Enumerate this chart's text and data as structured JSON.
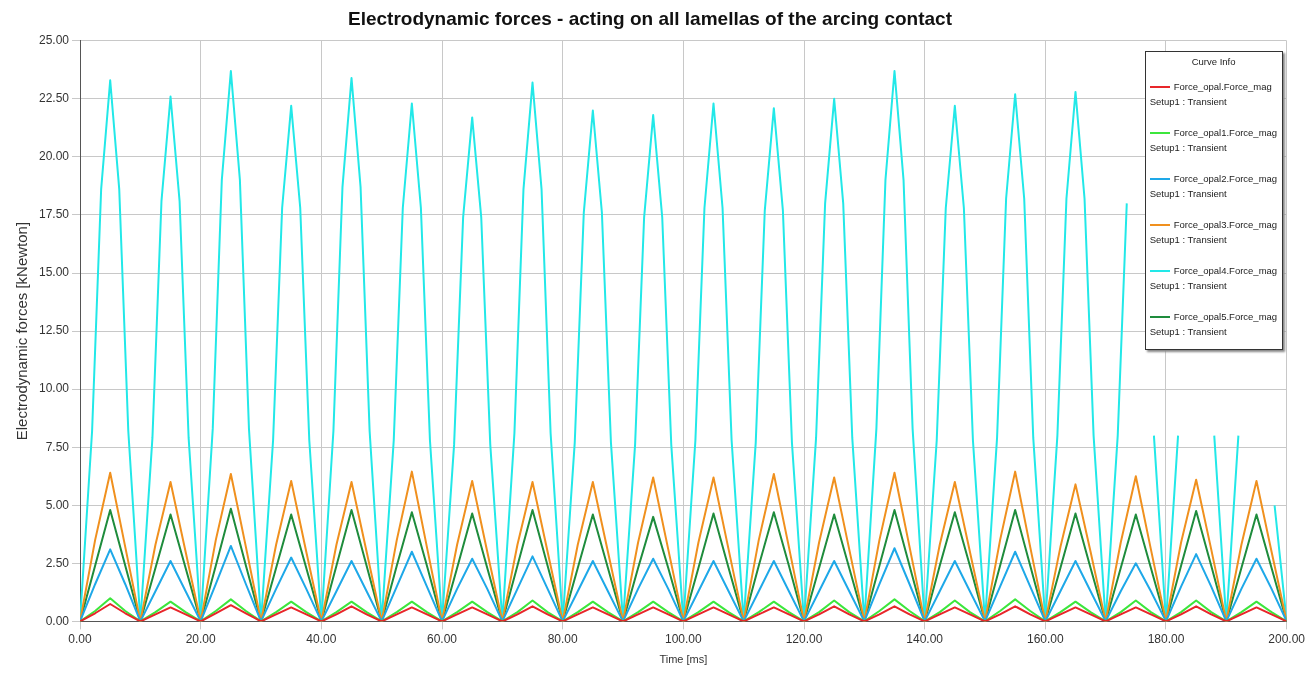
{
  "chart_data": {
    "type": "line",
    "title": "Electrodynamic forces - acting on all lamellas of the arcing contact",
    "xlabel": "Time [ms]",
    "ylabel": "Electrodynamic forces [kNewton]",
    "legend_title": "Curve Info",
    "legend": "top right",
    "grid": true,
    "xlim": [
      0,
      200
    ],
    "xticks": [
      {
        "value": 0,
        "label": "0.00"
      },
      {
        "value": 20,
        "label": "20.00"
      },
      {
        "value": 40,
        "label": "40.00"
      },
      {
        "value": 60,
        "label": "60.00"
      },
      {
        "value": 80,
        "label": "80.00"
      },
      {
        "value": 100,
        "label": "100.00"
      },
      {
        "value": 120,
        "label": "120.00"
      },
      {
        "value": 140,
        "label": "140.00"
      },
      {
        "value": 160,
        "label": "160.00"
      },
      {
        "value": 180,
        "label": "180.00"
      },
      {
        "value": 200,
        "label": "200.00"
      }
    ],
    "ylim": [
      0,
      25
    ],
    "yticks": [
      {
        "value": 0,
        "label": "0.00"
      },
      {
        "value": 2.5,
        "label": "2.50"
      },
      {
        "value": 5,
        "label": "5.00"
      },
      {
        "value": 7.5,
        "label": "7.50"
      },
      {
        "value": 10,
        "label": "10.00"
      },
      {
        "value": 12.5,
        "label": "12.50"
      },
      {
        "value": 15,
        "label": "15.00"
      },
      {
        "value": 17.5,
        "label": "17.50"
      },
      {
        "value": 20,
        "label": "20.00"
      },
      {
        "value": 22.5,
        "label": "22.50"
      },
      {
        "value": 25,
        "label": "25.00"
      }
    ],
    "series": [
      {
        "name": "Force_opal.Force_mag Setup1 : Transient",
        "color": "#e8262a",
        "x": [
          0,
          2.5,
          5,
          7.5,
          10,
          12.5,
          15,
          17.5,
          20,
          22.5,
          25,
          27.5,
          30,
          32.5,
          35,
          37.5,
          40,
          42.5,
          45,
          47.5,
          50,
          52.5,
          55,
          57.5,
          60,
          62.5,
          65,
          67.5,
          70,
          72.5,
          75,
          77.5,
          80,
          82.5,
          85,
          87.5,
          90,
          92.5,
          95,
          97.5,
          100,
          102.5,
          105,
          107.5,
          110,
          112.5,
          115,
          117.5,
          120,
          122.5,
          125,
          127.5,
          130,
          132.5,
          135,
          137.5,
          140,
          142.5,
          145,
          147.5,
          150,
          152.5,
          155,
          157.5,
          160,
          162.5,
          165,
          167.5,
          170,
          172.5,
          175,
          177.5,
          180,
          182.5,
          185,
          187.5,
          190,
          192.5,
          195,
          197.5,
          200
        ],
        "values": [
          0,
          0.35,
          0.75,
          0.35,
          0,
          0.3,
          0.6,
          0.3,
          0,
          0.35,
          0.7,
          0.35,
          0,
          0.3,
          0.6,
          0.3,
          0,
          0.3,
          0.65,
          0.3,
          0,
          0.3,
          0.6,
          0.3,
          0,
          0.3,
          0.6,
          0.3,
          0,
          0.3,
          0.65,
          0.3,
          0,
          0.3,
          0.6,
          0.3,
          0,
          0.3,
          0.6,
          0.3,
          0,
          0.3,
          0.6,
          0.3,
          0,
          0.3,
          0.6,
          0.3,
          0,
          0.3,
          0.65,
          0.3,
          0,
          0.3,
          0.65,
          0.3,
          0,
          0.3,
          0.6,
          0.3,
          0,
          0.3,
          0.65,
          0.3,
          0,
          0.3,
          0.6,
          0.3,
          0,
          0.3,
          0.6,
          0.3,
          0,
          0.3,
          0.65,
          0.3,
          0,
          0.3,
          0.6,
          0.3,
          0
        ]
      },
      {
        "name": "Force_opal1.Force_mag Setup1 : Transient",
        "color": "#3ce63c",
        "x": [
          0,
          2.5,
          5,
          7.5,
          10,
          12.5,
          15,
          17.5,
          20,
          22.5,
          25,
          27.5,
          30,
          32.5,
          35,
          37.5,
          40,
          42.5,
          45,
          47.5,
          50,
          52.5,
          55,
          57.5,
          60,
          62.5,
          65,
          67.5,
          70,
          72.5,
          75,
          77.5,
          80,
          82.5,
          85,
          87.5,
          90,
          92.5,
          95,
          97.5,
          100,
          102.5,
          105,
          107.5,
          110,
          112.5,
          115,
          117.5,
          120,
          122.5,
          125,
          127.5,
          130,
          132.5,
          135,
          137.5,
          140,
          142.5,
          145,
          147.5,
          150,
          152.5,
          155,
          157.5,
          160,
          162.5,
          165,
          167.5,
          170,
          172.5,
          175,
          177.5,
          180,
          182.5,
          185,
          187.5,
          190,
          192.5,
          195,
          197.5,
          200
        ],
        "values": [
          0,
          0.45,
          1.0,
          0.45,
          0,
          0.4,
          0.85,
          0.4,
          0,
          0.45,
          0.95,
          0.45,
          0,
          0.4,
          0.85,
          0.4,
          0,
          0.4,
          0.85,
          0.4,
          0,
          0.4,
          0.85,
          0.4,
          0,
          0.4,
          0.85,
          0.4,
          0,
          0.4,
          0.9,
          0.4,
          0,
          0.4,
          0.85,
          0.4,
          0,
          0.4,
          0.85,
          0.4,
          0,
          0.4,
          0.85,
          0.4,
          0,
          0.4,
          0.85,
          0.4,
          0,
          0.4,
          0.9,
          0.4,
          0,
          0.45,
          0.95,
          0.45,
          0,
          0.4,
          0.9,
          0.4,
          0,
          0.45,
          0.95,
          0.45,
          0,
          0.4,
          0.85,
          0.4,
          0,
          0.4,
          0.9,
          0.4,
          0,
          0.4,
          0.9,
          0.4,
          0,
          0.4,
          0.85,
          0.4,
          0
        ]
      },
      {
        "name": "Force_opal2.Force_mag Setup1 : Transient",
        "color": "#1ea8e8",
        "x": [
          0,
          2.5,
          5,
          7.5,
          10,
          12.5,
          15,
          17.5,
          20,
          22.5,
          25,
          27.5,
          30,
          32.5,
          35,
          37.5,
          40,
          42.5,
          45,
          47.5,
          50,
          52.5,
          55,
          57.5,
          60,
          62.5,
          65,
          67.5,
          70,
          72.5,
          75,
          77.5,
          80,
          82.5,
          85,
          87.5,
          90,
          92.5,
          95,
          97.5,
          100,
          102.5,
          105,
          107.5,
          110,
          112.5,
          115,
          117.5,
          120,
          122.5,
          125,
          127.5,
          130,
          132.5,
          135,
          137.5,
          140,
          142.5,
          145,
          147.5,
          150,
          152.5,
          155,
          157.5,
          160,
          162.5,
          165,
          167.5,
          170,
          172.5,
          175,
          177.5,
          180,
          182.5,
          185,
          187.5,
          190,
          192.5,
          195,
          197.5,
          200
        ],
        "values": [
          0,
          1.6,
          3.1,
          1.6,
          0,
          1.3,
          2.6,
          1.3,
          0,
          1.6,
          3.25,
          1.6,
          0,
          1.4,
          2.75,
          1.4,
          0,
          1.3,
          2.6,
          1.3,
          0,
          1.5,
          3.0,
          1.5,
          0,
          1.4,
          2.7,
          1.4,
          0,
          1.4,
          2.8,
          1.4,
          0,
          1.3,
          2.6,
          1.3,
          0,
          1.4,
          2.7,
          1.4,
          0,
          1.3,
          2.6,
          1.3,
          0,
          1.3,
          2.6,
          1.3,
          0,
          1.3,
          2.6,
          1.3,
          0,
          1.6,
          3.15,
          1.6,
          0,
          1.3,
          2.6,
          1.3,
          0,
          1.5,
          3.0,
          1.5,
          0,
          1.3,
          2.6,
          1.3,
          0,
          1.3,
          2.5,
          1.3,
          0,
          1.5,
          2.9,
          1.5,
          0,
          1.4,
          2.7,
          1.4,
          0
        ]
      },
      {
        "name": "Force_opal3.Force_mag Setup1 : Transient",
        "color": "#f0901e",
        "x": [
          0,
          2.5,
          5,
          7.5,
          10,
          12.5,
          15,
          17.5,
          20,
          22.5,
          25,
          27.5,
          30,
          32.5,
          35,
          37.5,
          40,
          42.5,
          45,
          47.5,
          50,
          52.5,
          55,
          57.5,
          60,
          62.5,
          65,
          67.5,
          70,
          72.5,
          75,
          77.5,
          80,
          82.5,
          85,
          87.5,
          90,
          92.5,
          95,
          97.5,
          100,
          102.5,
          105,
          107.5,
          110,
          112.5,
          115,
          117.5,
          120,
          122.5,
          125,
          127.5,
          130,
          132.5,
          135,
          137.5,
          140,
          142.5,
          145,
          147.5,
          150,
          152.5,
          155,
          157.5,
          160,
          162.5,
          165,
          167.5,
          170,
          172.5,
          175,
          177.5,
          180,
          182.5,
          185,
          187.5,
          190,
          192.5,
          195,
          197.5,
          200
        ],
        "values": [
          0,
          3.5,
          6.4,
          3.2,
          0,
          3.3,
          6.0,
          3.0,
          0,
          3.5,
          6.35,
          3.2,
          0,
          3.3,
          6.05,
          3.0,
          0,
          3.3,
          6.0,
          3.0,
          0,
          3.5,
          6.45,
          3.2,
          0,
          3.3,
          6.05,
          3.0,
          0,
          3.3,
          6.0,
          3.0,
          0,
          3.3,
          6.0,
          3.0,
          0,
          3.4,
          6.2,
          3.1,
          0,
          3.4,
          6.2,
          3.1,
          0,
          3.5,
          6.35,
          3.2,
          0,
          3.4,
          6.2,
          3.1,
          0,
          3.5,
          6.4,
          3.2,
          0,
          3.3,
          6.0,
          3.0,
          0,
          3.5,
          6.45,
          3.2,
          0,
          3.2,
          5.9,
          3.0,
          0,
          3.4,
          6.25,
          3.1,
          0,
          3.4,
          6.1,
          3.1,
          0,
          3.3,
          6.05,
          3.0,
          0
        ]
      },
      {
        "name": "Force_opal4.Force_mag Setup1 : Transient",
        "color": "#22e8e8",
        "x": [
          0,
          2,
          3.5,
          5,
          6.5,
          8,
          10,
          12,
          13.5,
          15,
          16.5,
          18,
          20,
          22,
          23.5,
          25,
          26.5,
          28,
          30,
          32,
          33.5,
          35,
          36.5,
          38,
          40,
          42,
          43.5,
          45,
          46.5,
          48,
          50,
          52,
          53.5,
          55,
          56.5,
          58,
          60,
          62,
          63.5,
          65,
          66.5,
          68,
          70,
          72,
          73.5,
          75,
          76.5,
          78,
          80,
          82,
          83.5,
          85,
          86.5,
          88,
          90,
          92,
          93.5,
          95,
          96.5,
          98,
          100,
          102,
          103.5,
          105,
          106.5,
          108,
          110,
          112,
          113.5,
          115,
          116.5,
          118,
          120,
          122,
          123.5,
          125,
          126.5,
          128,
          130,
          132,
          133.5,
          135,
          136.5,
          138,
          140,
          142,
          143.5,
          145,
          146.5,
          148,
          150,
          152,
          153.5,
          155,
          156.5,
          158,
          160,
          162,
          163.5,
          165,
          166.5,
          168,
          170,
          172,
          173.5,
          175,
          176.5,
          178,
          180,
          182,
          183.5,
          185,
          186.5,
          188,
          190,
          192,
          193.5,
          195,
          196.5,
          198,
          200
        ],
        "values": [
          0,
          8.2,
          18.6,
          23.3,
          18.6,
          8.2,
          0,
          7.9,
          18.1,
          22.6,
          18.1,
          7.9,
          0,
          8.3,
          19.0,
          23.7,
          19.0,
          8.3,
          0,
          7.8,
          17.8,
          22.2,
          17.8,
          7.8,
          0,
          8.2,
          18.7,
          23.4,
          18.7,
          8.2,
          0,
          7.8,
          17.8,
          22.3,
          17.8,
          7.8,
          0,
          7.6,
          17.4,
          21.7,
          17.4,
          7.6,
          0,
          8.1,
          18.6,
          23.2,
          18.6,
          8.1,
          0,
          7.7,
          17.6,
          22.0,
          17.6,
          7.7,
          0,
          7.6,
          17.4,
          21.8,
          17.4,
          7.6,
          0,
          7.8,
          17.8,
          22.3,
          17.8,
          7.8,
          0,
          7.7,
          17.7,
          22.1,
          17.7,
          7.7,
          0,
          7.9,
          18.0,
          22.5,
          18.0,
          7.9,
          0,
          8.3,
          19.0,
          23.7,
          19.0,
          8.3,
          0,
          7.8,
          17.8,
          22.2,
          17.8,
          7.8,
          0,
          7.9,
          18.2,
          22.7,
          18.2,
          7.9,
          0,
          8.0,
          18.2,
          22.8,
          18.2,
          8.0,
          0,
          8.0,
          18.0,
          null,
          null,
          8.0,
          0,
          8.0,
          null,
          null,
          null,
          8.0,
          0,
          8.0,
          null,
          null,
          null,
          5.0,
          0
        ]
      },
      {
        "name": "Force_opal5.Force_mag Setup1 : Transient",
        "color": "#1e8c3c",
        "x": [
          0,
          2.5,
          5,
          7.5,
          10,
          12.5,
          15,
          17.5,
          20,
          22.5,
          25,
          27.5,
          30,
          32.5,
          35,
          37.5,
          40,
          42.5,
          45,
          47.5,
          50,
          52.5,
          55,
          57.5,
          60,
          62.5,
          65,
          67.5,
          70,
          72.5,
          75,
          77.5,
          80,
          82.5,
          85,
          87.5,
          90,
          92.5,
          95,
          97.5,
          100,
          102.5,
          105,
          107.5,
          110,
          112.5,
          115,
          117.5,
          120,
          122.5,
          125,
          127.5,
          130,
          132.5,
          135,
          137.5,
          140,
          142.5,
          145,
          147.5,
          150,
          152.5,
          155,
          157.5,
          160,
          162.5,
          165,
          167.5,
          170,
          172.5,
          175,
          177.5,
          180,
          182.5,
          185,
          187.5,
          190,
          192.5,
          195,
          197.5,
          200
        ],
        "values": [
          0,
          2.4,
          4.8,
          2.4,
          0,
          2.3,
          4.6,
          2.3,
          0,
          2.4,
          4.85,
          2.4,
          0,
          2.3,
          4.6,
          2.3,
          0,
          2.4,
          4.8,
          2.4,
          0,
          2.4,
          4.7,
          2.4,
          0,
          2.3,
          4.65,
          2.3,
          0,
          2.4,
          4.8,
          2.4,
          0,
          2.3,
          4.6,
          2.3,
          0,
          2.3,
          4.5,
          2.3,
          0,
          2.3,
          4.65,
          2.3,
          0,
          2.4,
          4.7,
          2.4,
          0,
          2.3,
          4.6,
          2.3,
          0,
          2.4,
          4.8,
          2.4,
          0,
          2.4,
          4.7,
          2.4,
          0,
          2.4,
          4.8,
          2.4,
          0,
          2.3,
          4.65,
          2.3,
          0,
          2.3,
          4.6,
          2.3,
          0,
          2.4,
          4.75,
          2.4,
          0,
          2.3,
          4.6,
          2.3,
          0
        ]
      }
    ]
  }
}
